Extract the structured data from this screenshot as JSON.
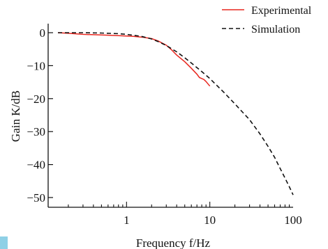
{
  "chart_data": {
    "type": "line",
    "title": "",
    "xlabel": "Frequency f/Hz",
    "ylabel": "Gain K/dB",
    "xscale": "log",
    "xlim": [
      0.15,
      100
    ],
    "ylim": [
      -55,
      0
    ],
    "x_ticks": [
      1,
      10,
      100
    ],
    "x_tick_labels": [
      "1",
      "10",
      "100"
    ],
    "y_ticks": [
      0,
      -10,
      -20,
      -30,
      -40,
      -50
    ],
    "y_tick_labels": [
      "0",
      "−10",
      "−20",
      "−30",
      "−40",
      "−50"
    ],
    "legend_position": "top-right",
    "grid": false,
    "series": [
      {
        "name": "Experimental",
        "color": "#e8261e",
        "dash": "solid",
        "points": [
          [
            0.15,
            0.0
          ],
          [
            0.2,
            -0.2
          ],
          [
            0.3,
            -0.5
          ],
          [
            0.5,
            -0.7
          ],
          [
            0.8,
            -0.9
          ],
          [
            1.2,
            -1.1
          ],
          [
            1.6,
            -1.4
          ],
          [
            2.0,
            -1.8
          ],
          [
            2.4,
            -2.5
          ],
          [
            3.0,
            -3.8
          ],
          [
            3.5,
            -5.3
          ],
          [
            4.0,
            -6.8
          ],
          [
            5.0,
            -8.8
          ],
          [
            6.0,
            -10.8
          ],
          [
            7.0,
            -12.6
          ],
          [
            7.5,
            -13.6
          ],
          [
            8.0,
            -13.9
          ],
          [
            8.5,
            -14.2
          ],
          [
            9.0,
            -14.8
          ],
          [
            10.0,
            -16.2
          ]
        ]
      },
      {
        "name": "Simulation",
        "color": "#111111",
        "dash": "dashed",
        "points": [
          [
            0.15,
            0.0
          ],
          [
            0.3,
            0.0
          ],
          [
            0.5,
            -0.1
          ],
          [
            0.8,
            -0.3
          ],
          [
            1.0,
            -0.5
          ],
          [
            1.5,
            -1.1
          ],
          [
            2.0,
            -1.9
          ],
          [
            2.5,
            -2.9
          ],
          [
            3.0,
            -3.9
          ],
          [
            4.0,
            -5.8
          ],
          [
            5.0,
            -7.6
          ],
          [
            6.0,
            -9.2
          ],
          [
            7.0,
            -10.6
          ],
          [
            8.0,
            -11.8
          ],
          [
            10.0,
            -13.9
          ],
          [
            15.0,
            -18.3
          ],
          [
            20.0,
            -21.6
          ],
          [
            30.0,
            -26.4
          ],
          [
            40.0,
            -30.7
          ],
          [
            50.0,
            -34.5
          ],
          [
            60.0,
            -37.8
          ],
          [
            70.0,
            -41.2
          ],
          [
            80.0,
            -44.1
          ],
          [
            90.0,
            -46.7
          ],
          [
            100.0,
            -49.2
          ]
        ]
      }
    ]
  }
}
